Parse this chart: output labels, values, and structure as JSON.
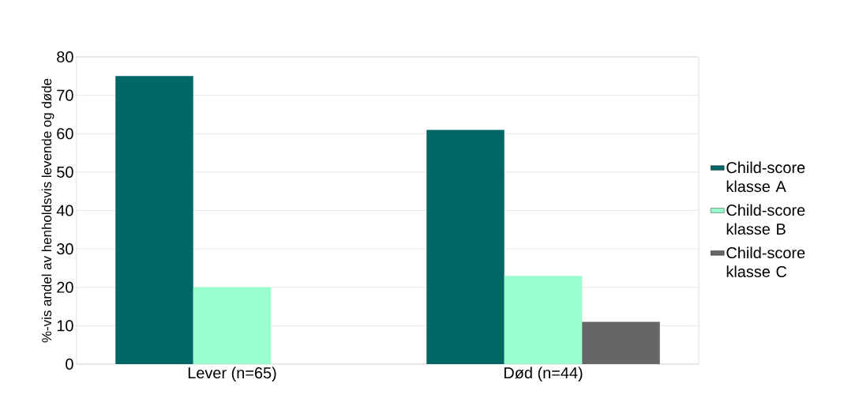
{
  "chart_data": {
    "type": "bar",
    "ylabel": "%-vis andel av henholdsvis levende og døde",
    "categories": [
      "Lever (n=65)",
      "Død (n=44)"
    ],
    "series": [
      {
        "name": "Child-score klasse A",
        "color": "#006666",
        "values": [
          75,
          61
        ]
      },
      {
        "name": "Child-score klasse B",
        "color": "#99ffcc",
        "values": [
          20,
          23
        ]
      },
      {
        "name": "Child-score klasse C",
        "color": "#666666",
        "values": [
          null,
          11
        ]
      }
    ],
    "ylim": [
      0,
      80
    ],
    "yticks": [
      0,
      10,
      20,
      30,
      40,
      50,
      60,
      70,
      80
    ],
    "grid": "y",
    "legend": "right"
  }
}
